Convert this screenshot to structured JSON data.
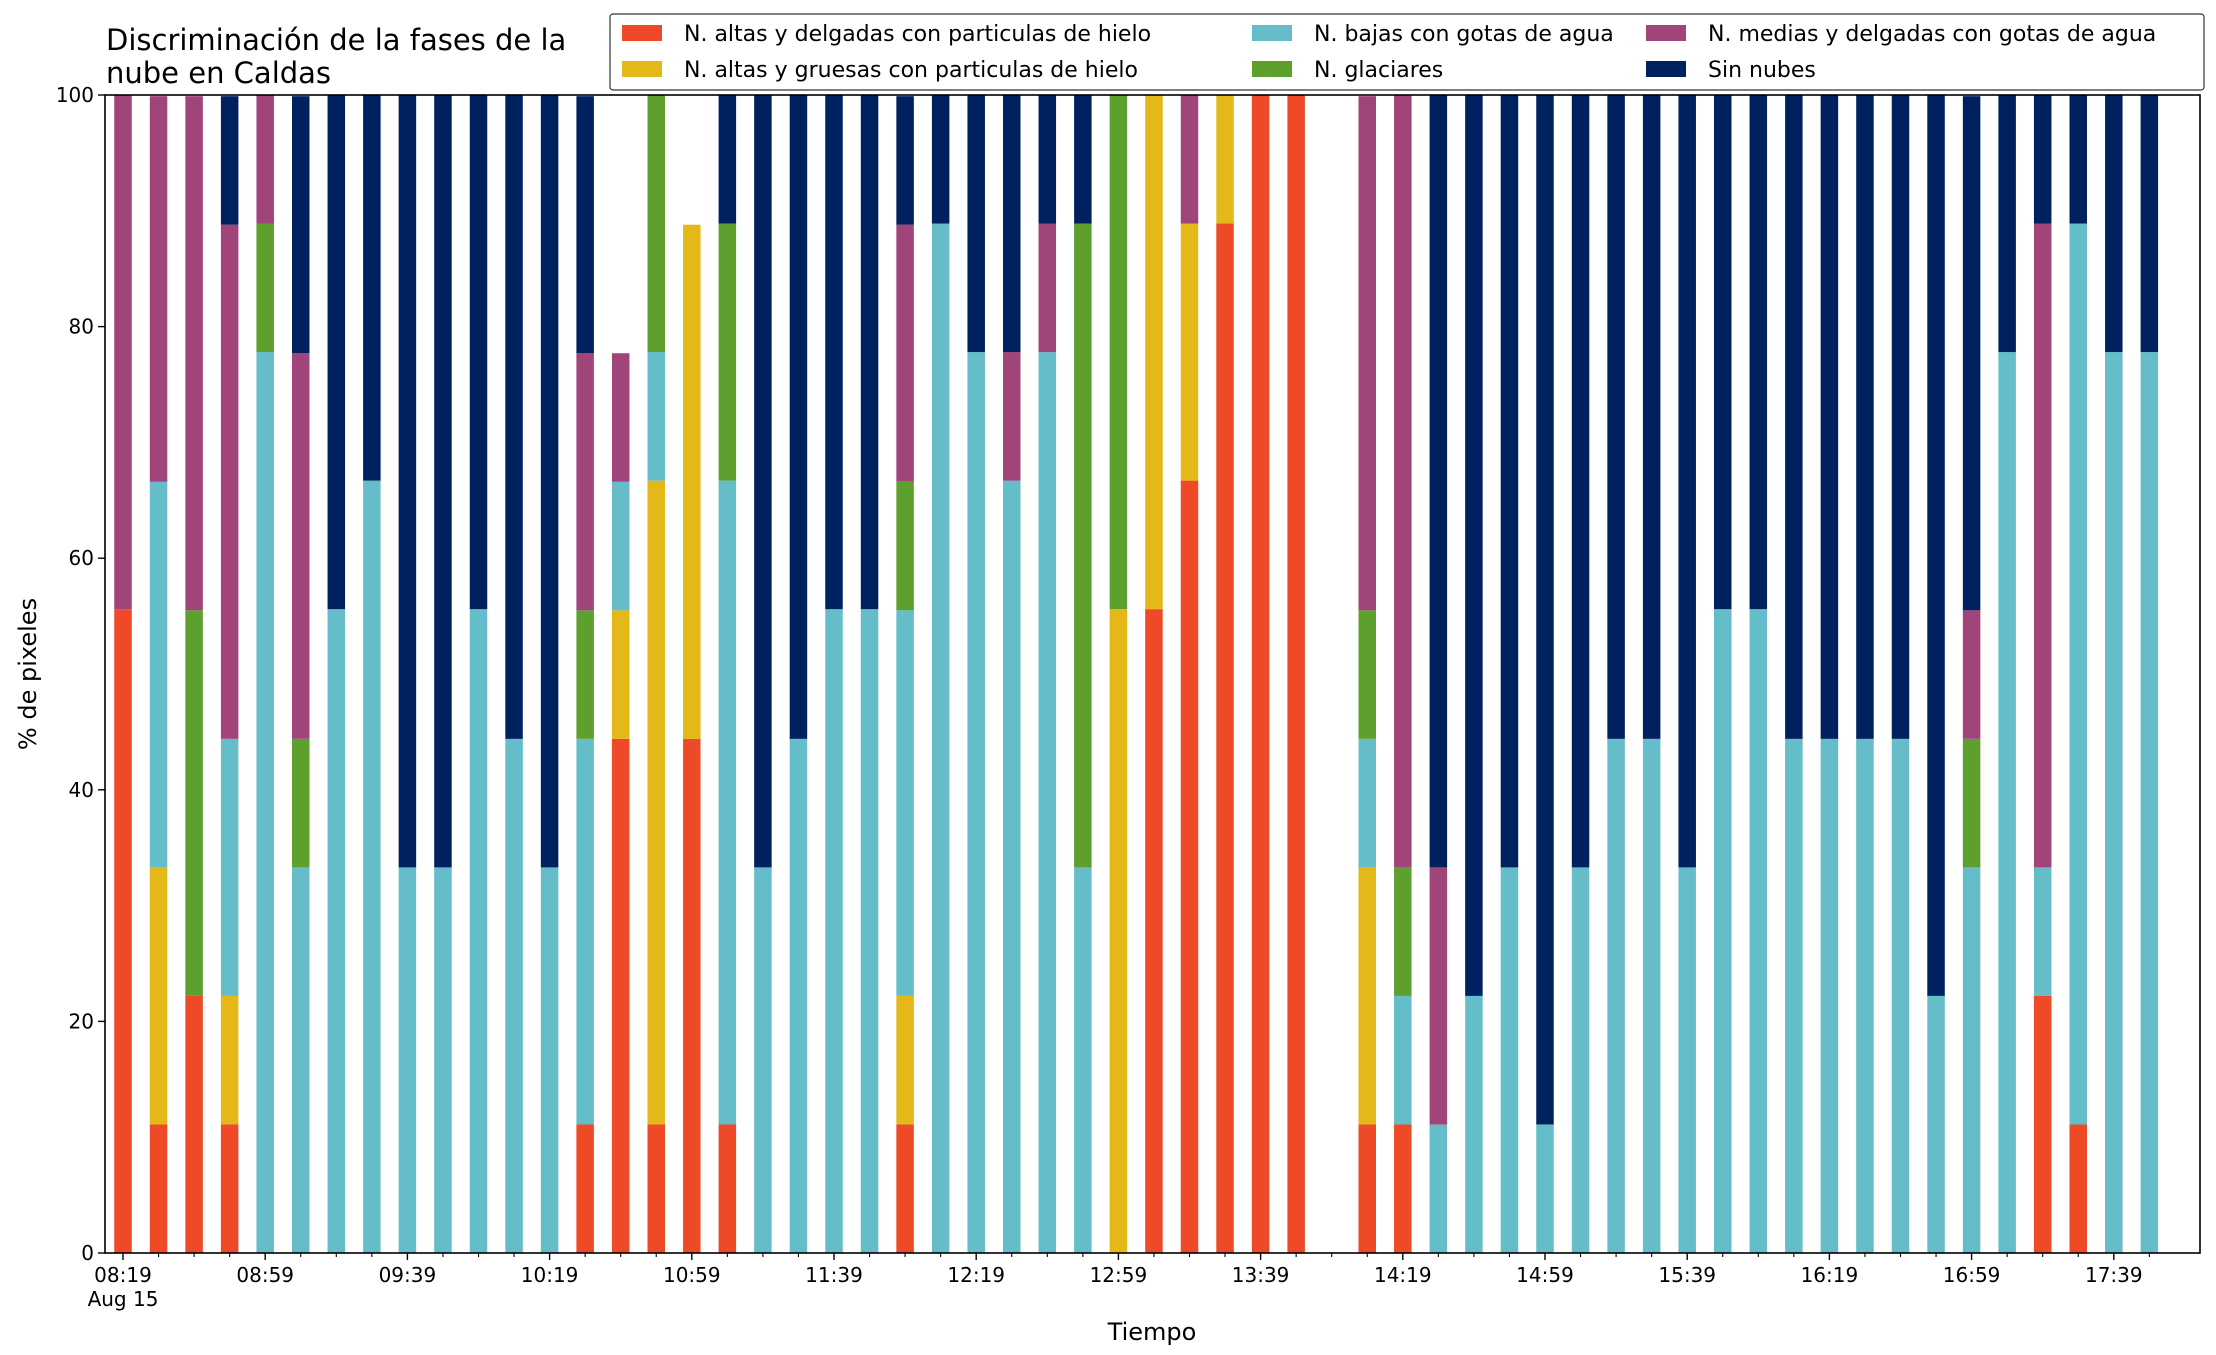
{
  "chart_data": {
    "type": "bar",
    "stacked": true,
    "title_lines": [
      "Discriminación de la fases de la",
      "nube en Caldas"
    ],
    "xlabel": "Tiempo",
    "ylabel": "% de pixeles",
    "ylim": [
      0,
      100
    ],
    "y_ticks": [
      0,
      20,
      40,
      60,
      80,
      100
    ],
    "x_tick_labels": [
      "08:19",
      "08:59",
      "09:39",
      "10:19",
      "10:59",
      "11:39",
      "12:19",
      "12:59",
      "13:39",
      "14:19",
      "14:59",
      "15:39",
      "16:19",
      "16:59",
      "17:39"
    ],
    "x_date_label": "Aug 15",
    "grid": false,
    "legend_position": "top-right",
    "x": [
      "08:19",
      "08:29",
      "08:39",
      "08:49",
      "08:59",
      "09:09",
      "09:19",
      "09:29",
      "09:39",
      "09:49",
      "09:59",
      "10:09",
      "10:19",
      "10:29",
      "10:39",
      "10:49",
      "10:59",
      "11:09",
      "11:19",
      "11:29",
      "11:39",
      "11:49",
      "11:59",
      "12:09",
      "12:19",
      "12:29",
      "12:39",
      "12:49",
      "12:59",
      "13:09",
      "13:19",
      "13:29",
      "13:39",
      "13:49",
      "13:59",
      "14:09",
      "14:19",
      "14:29",
      "14:39",
      "14:49",
      "14:59",
      "15:09",
      "15:19",
      "15:29",
      "15:39",
      "15:49",
      "15:59",
      "16:09",
      "16:19",
      "16:29",
      "16:39",
      "16:49",
      "16:59",
      "17:09",
      "17:19",
      "17:29",
      "17:39",
      "17:49"
    ],
    "series": [
      {
        "name": "N. altas y delgadas con particulas de hielo",
        "color": "#EF4A28",
        "values": [
          55.6,
          11.1,
          22.2,
          11.1,
          0,
          0,
          0,
          0,
          0,
          0,
          0,
          0,
          0,
          11.1,
          44.4,
          11.1,
          44.4,
          11.1,
          0,
          0,
          0,
          0,
          11.1,
          0,
          0,
          0,
          0,
          0,
          0,
          55.6,
          66.7,
          88.9,
          100,
          100,
          null,
          11.1,
          11.1,
          0,
          0,
          0,
          0,
          0,
          0,
          0,
          0,
          0,
          0,
          0,
          0,
          0,
          0,
          0,
          0,
          0,
          22.2,
          11.1,
          0,
          0
        ]
      },
      {
        "name": "N. altas y gruesas con particulas de hielo",
        "color": "#E3B818",
        "values": [
          0,
          22.2,
          0,
          11.1,
          0,
          0,
          0,
          0,
          0,
          0,
          0,
          0,
          0,
          0,
          11.1,
          55.6,
          44.4,
          0,
          0,
          0,
          0,
          0,
          11.1,
          0,
          0,
          0,
          0,
          0,
          55.6,
          44.4,
          22.2,
          11.1,
          0,
          0,
          null,
          22.2,
          0,
          0,
          0,
          0,
          0,
          0,
          0,
          0,
          0,
          0,
          0,
          0,
          0,
          0,
          0,
          0,
          0,
          0,
          0,
          0,
          0,
          0
        ]
      },
      {
        "name": "N. bajas con gotas de agua",
        "color": "#65BDC9",
        "values": [
          0,
          33.3,
          0,
          22.2,
          77.8,
          33.3,
          55.6,
          66.7,
          33.3,
          33.3,
          55.6,
          44.4,
          33.3,
          33.3,
          11.1,
          11.1,
          0,
          55.6,
          33.3,
          44.4,
          55.6,
          55.6,
          33.3,
          88.9,
          77.8,
          66.7,
          77.8,
          33.3,
          0,
          0,
          0,
          0,
          0,
          0,
          null,
          11.1,
          11.1,
          11.1,
          22.2,
          33.3,
          11.1,
          33.3,
          44.4,
          44.4,
          33.3,
          55.6,
          55.6,
          44.4,
          44.4,
          44.4,
          44.4,
          22.2,
          33.3,
          77.8,
          11.1,
          77.8,
          77.8,
          77.8
        ]
      },
      {
        "name": "N. glaciares",
        "color": "#5DA02E",
        "values": [
          0,
          0,
          33.3,
          0,
          11.1,
          11.1,
          0,
          0,
          0,
          0,
          0,
          0,
          0,
          11.1,
          0,
          22.2,
          0,
          22.2,
          0,
          0,
          0,
          0,
          11.1,
          0,
          0,
          0,
          0,
          55.6,
          44.4,
          0,
          0,
          0,
          0,
          0,
          null,
          11.1,
          11.1,
          0,
          0,
          0,
          0,
          0,
          0,
          0,
          0,
          0,
          0,
          0,
          0,
          0,
          0,
          0,
          11.1,
          0,
          0,
          0,
          0,
          0
        ]
      },
      {
        "name": "N. medias y delgadas con gotas de agua",
        "color": "#A1447A",
        "values": [
          44.4,
          33.3,
          44.4,
          44.4,
          11.1,
          33.3,
          0,
          0,
          0,
          0,
          0,
          0,
          0,
          22.2,
          11.1,
          0,
          0,
          0,
          0,
          0,
          0,
          0,
          22.2,
          0,
          0,
          11.1,
          11.1,
          0,
          0,
          0,
          11.1,
          0,
          0,
          0,
          null,
          44.4,
          66.7,
          22.2,
          0,
          0,
          0,
          0,
          0,
          0,
          0,
          0,
          0,
          0,
          0,
          0,
          0,
          0,
          11.1,
          0,
          55.6,
          0,
          0,
          0
        ]
      },
      {
        "name": "Sin nubes",
        "color": "#00215F",
        "values": [
          0,
          0,
          0,
          11.1,
          0,
          22.2,
          44.4,
          33.3,
          66.7,
          66.7,
          44.4,
          55.6,
          66.7,
          22.2,
          0,
          0,
          0,
          11.1,
          66.7,
          55.6,
          44.4,
          44.4,
          11.1,
          11.1,
          22.2,
          22.2,
          11.1,
          11.1,
          0,
          0,
          0,
          0,
          0,
          0,
          null,
          0,
          0,
          66.7,
          77.8,
          66.7,
          88.9,
          66.7,
          55.6,
          55.6,
          66.7,
          44.4,
          44.4,
          55.6,
          55.6,
          55.6,
          55.6,
          77.8,
          44.4,
          22.2,
          11.1,
          11.1,
          22.2,
          22.2
        ]
      }
    ]
  }
}
